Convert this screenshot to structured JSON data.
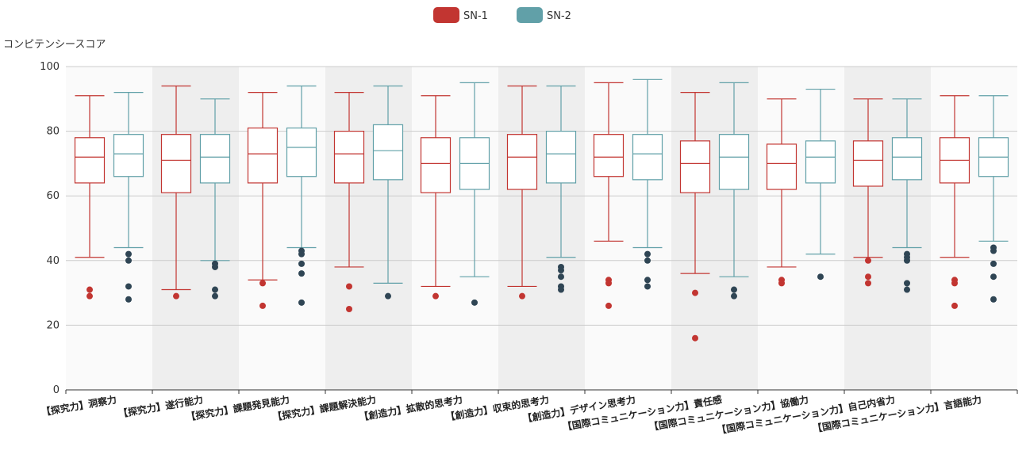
{
  "chart_data": {
    "type": "boxplot",
    "ylabel": "コンピテンシースコア",
    "ylim": [
      0,
      100
    ],
    "yticks": [
      0,
      20,
      40,
      60,
      80,
      100
    ],
    "grid": true,
    "legend_position": "top-center",
    "categories": [
      "【探究力】洞察力",
      "【探究力】遂行能力",
      "【探究力】課題発見能力",
      "【探究力】課題解決能力",
      "【創造力】拡散的思考力",
      "【創造力】収束的思考力",
      "【創造力】デザイン思考力",
      "【国際コミュニケーション力】責任感",
      "【国際コミュニケーション力】協働力",
      "【国際コミュニケーション力】自己内省力",
      "【国際コミュニケーション力】言語能力"
    ],
    "series": [
      {
        "name": "SN-1",
        "color": "#c23531",
        "boxes": [
          {
            "min": 41,
            "q1": 64,
            "median": 72,
            "q3": 78,
            "max": 91,
            "outliers": [
              31,
              29
            ]
          },
          {
            "min": 31,
            "q1": 61,
            "median": 71,
            "q3": 79,
            "max": 94,
            "outliers": [
              29
            ]
          },
          {
            "min": 34,
            "q1": 64,
            "median": 73,
            "q3": 81,
            "max": 92,
            "outliers": [
              33,
              26
            ]
          },
          {
            "min": 38,
            "q1": 64,
            "median": 73,
            "q3": 80,
            "max": 92,
            "outliers": [
              32,
              25
            ]
          },
          {
            "min": 32,
            "q1": 61,
            "median": 70,
            "q3": 78,
            "max": 91,
            "outliers": [
              29
            ]
          },
          {
            "min": 32,
            "q1": 62,
            "median": 72,
            "q3": 79,
            "max": 94,
            "outliers": [
              29
            ]
          },
          {
            "min": 46,
            "q1": 66,
            "median": 72,
            "q3": 79,
            "max": 95,
            "outliers": [
              34,
              33,
              26
            ]
          },
          {
            "min": 36,
            "q1": 61,
            "median": 70,
            "q3": 77,
            "max": 92,
            "outliers": [
              30,
              16
            ]
          },
          {
            "min": 38,
            "q1": 62,
            "median": 70,
            "q3": 76,
            "max": 90,
            "outliers": [
              34,
              33
            ]
          },
          {
            "min": 41,
            "q1": 63,
            "median": 71,
            "q3": 77,
            "max": 90,
            "outliers": [
              40,
              35,
              33
            ]
          },
          {
            "min": 41,
            "q1": 64,
            "median": 71,
            "q3": 78,
            "max": 91,
            "outliers": [
              34,
              33,
              26
            ]
          }
        ]
      },
      {
        "name": "SN-2",
        "color": "#61a0a8",
        "outlier_color": "#2f4554",
        "boxes": [
          {
            "min": 44,
            "q1": 66,
            "median": 73,
            "q3": 79,
            "max": 92,
            "outliers": [
              42,
              40,
              32,
              28
            ]
          },
          {
            "min": 40,
            "q1": 64,
            "median": 72,
            "q3": 79,
            "max": 90,
            "outliers": [
              39,
              38,
              31,
              29
            ]
          },
          {
            "min": 44,
            "q1": 66,
            "median": 75,
            "q3": 81,
            "max": 94,
            "outliers": [
              43,
              42,
              39,
              36,
              27
            ]
          },
          {
            "min": 33,
            "q1": 65,
            "median": 74,
            "q3": 82,
            "max": 94,
            "outliers": [
              29
            ]
          },
          {
            "min": 35,
            "q1": 62,
            "median": 70,
            "q3": 78,
            "max": 95,
            "outliers": [
              27
            ]
          },
          {
            "min": 41,
            "q1": 64,
            "median": 73,
            "q3": 80,
            "max": 94,
            "outliers": [
              38,
              37,
              35,
              32,
              31
            ]
          },
          {
            "min": 44,
            "q1": 65,
            "median": 73,
            "q3": 79,
            "max": 96,
            "outliers": [
              42,
              40,
              34,
              32
            ]
          },
          {
            "min": 35,
            "q1": 62,
            "median": 72,
            "q3": 79,
            "max": 95,
            "outliers": [
              31,
              29
            ]
          },
          {
            "min": 42,
            "q1": 64,
            "median": 72,
            "q3": 77,
            "max": 93,
            "outliers": [
              35
            ]
          },
          {
            "min": 44,
            "q1": 65,
            "median": 72,
            "q3": 78,
            "max": 90,
            "outliers": [
              42,
              41,
              40,
              33,
              31
            ]
          },
          {
            "min": 46,
            "q1": 66,
            "median": 72,
            "q3": 78,
            "max": 91,
            "outliers": [
              44,
              43,
              39,
              35,
              28
            ]
          }
        ]
      }
    ]
  }
}
